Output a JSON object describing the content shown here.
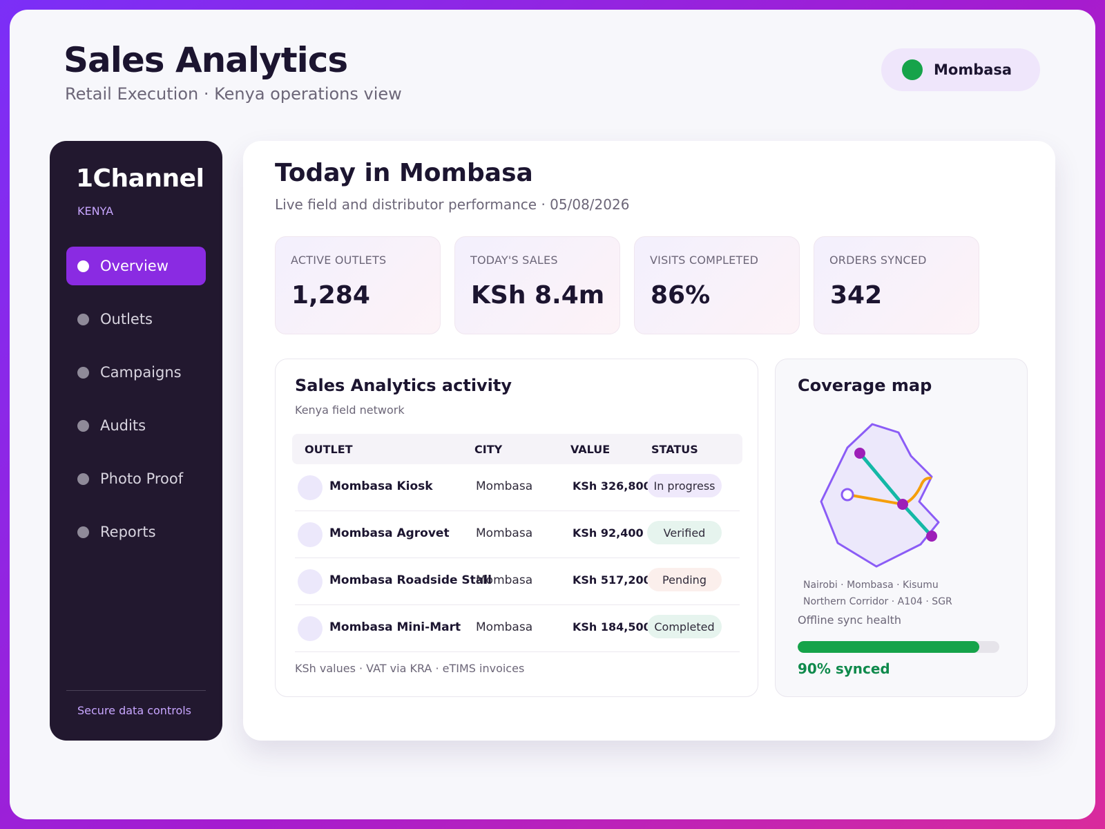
{
  "header": {
    "title": "Sales Analytics",
    "subtitle": "Retail Execution · Kenya operations view",
    "region_label": "Mombasa",
    "region_status_color": "#16a34a"
  },
  "sidebar": {
    "brand": "1Channel",
    "country": "KENYA",
    "items": [
      {
        "label": "Overview",
        "active": true
      },
      {
        "label": "Outlets",
        "active": false
      },
      {
        "label": "Campaigns",
        "active": false
      },
      {
        "label": "Audits",
        "active": false
      },
      {
        "label": "Photo Proof",
        "active": false
      },
      {
        "label": "Reports",
        "active": false
      }
    ],
    "footer": "Secure data controls",
    "accent": "#8a2be2"
  },
  "main": {
    "title": "Today in Mombasa",
    "subtitle": "Live field and distributor performance · 05/08/2026",
    "kpis": [
      {
        "label": "ACTIVE OUTLETS",
        "value": "1,284"
      },
      {
        "label": "TODAY'S SALES",
        "value": "KSh 8.4m"
      },
      {
        "label": "VISITS COMPLETED",
        "value": "86%"
      },
      {
        "label": "ORDERS SYNCED",
        "value": "342"
      }
    ]
  },
  "activity": {
    "title": "Sales Analytics activity",
    "subtitle": "Kenya field network",
    "columns": [
      "OUTLET",
      "CITY",
      "VALUE",
      "STATUS"
    ],
    "rows": [
      {
        "outlet": "Mombasa Kiosk",
        "city": "Mombasa",
        "value": "KSh 326,800",
        "status": "In progress",
        "status_color": "#efe9fb"
      },
      {
        "outlet": "Mombasa Agrovet",
        "city": "Mombasa",
        "value": "KSh 92,400",
        "status": "Verified",
        "status_color": "#e6f4ee"
      },
      {
        "outlet": "Mombasa Roadside Stall",
        "city": "Mombasa",
        "value": "KSh 517,200",
        "status": "Pending",
        "status_color": "#fbefec"
      },
      {
        "outlet": "Mombasa Mini-Mart",
        "city": "Mombasa",
        "value": "KSh 184,500",
        "status": "Completed",
        "status_color": "#e6f4ee"
      }
    ],
    "footer": "KSh values · VAT via KRA · eTIMS invoices"
  },
  "coverage": {
    "title": "Coverage map",
    "cities": "Nairobi · Mombasa · Kisumu",
    "routes": "Northern Corridor · A104 · SGR",
    "sync_label": "Offline sync health",
    "sync_percent": 90,
    "sync_text": "90% synced"
  }
}
